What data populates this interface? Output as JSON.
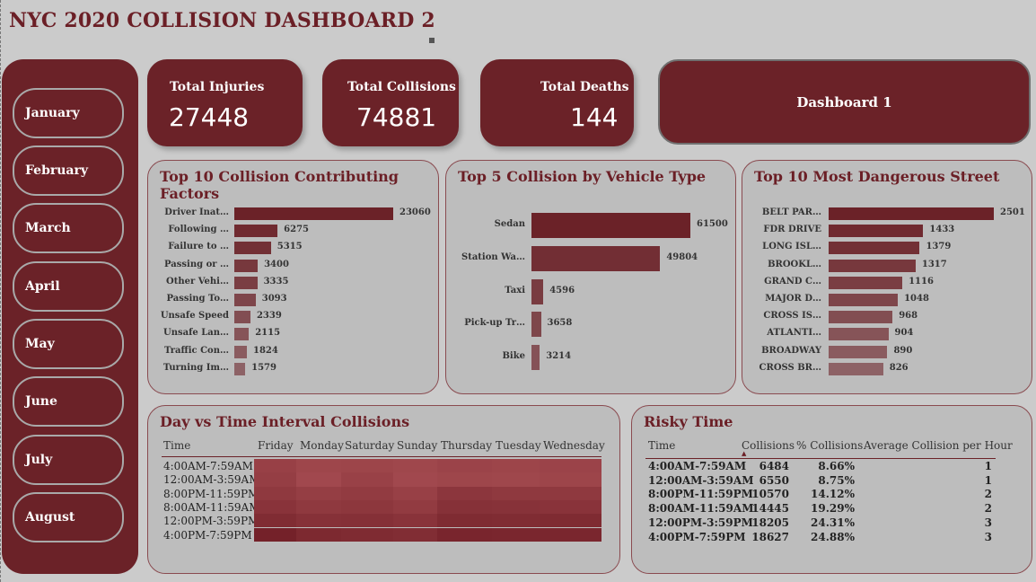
{
  "title": "NYC 2020 COLLISION DASHBOARD 2",
  "colors": {
    "accent": "#6b2228",
    "background": "#cbcbcb",
    "panel": "#bdbdbd"
  },
  "months": [
    "January",
    "February",
    "March",
    "April",
    "May",
    "June",
    "July",
    "August"
  ],
  "kpis": {
    "injuries": {
      "label": "Total Injuries",
      "value": "27448"
    },
    "collisions": {
      "label": "Total Collisions",
      "value": "74881"
    },
    "deaths": {
      "label": "Total Deaths",
      "value": "144"
    }
  },
  "dashboard_button": "Dashboard 1",
  "chart_data": [
    {
      "type": "bar",
      "orientation": "horizontal",
      "title": "Top 10 Collision Contributing Factors",
      "categories": [
        "Driver Inat…",
        "Following …",
        "Failure to …",
        "Passing or …",
        "Other Vehi…",
        "Passing To…",
        "Unsafe Speed",
        "Unsafe Lan…",
        "Traffic Con…",
        "Turning Im…"
      ],
      "values": [
        23060,
        6275,
        5315,
        3400,
        3335,
        3093,
        2339,
        2115,
        1824,
        1579
      ]
    },
    {
      "type": "bar",
      "orientation": "horizontal",
      "title": "Top 5 Collision by Vehicle Type",
      "categories": [
        "Sedan",
        "Station Wa…",
        "Taxi",
        "Pick-up Tr…",
        "Bike"
      ],
      "values": [
        61500,
        49804,
        4596,
        3658,
        3214
      ]
    },
    {
      "type": "bar",
      "orientation": "horizontal",
      "title": "Top 10 Most Dangerous Street",
      "categories": [
        "BELT PAR…",
        "FDR DRIVE",
        "LONG ISL…",
        "BROOKL…",
        "GRAND C…",
        "MAJOR D…",
        "CROSS IS…",
        "ATLANTI…",
        "BROADWAY",
        "CROSS BR…"
      ],
      "values": [
        2501,
        1433,
        1379,
        1317,
        1116,
        1048,
        968,
        904,
        890,
        826
      ]
    }
  ],
  "heatmap": {
    "title": "Day vs Time Interval Collisions",
    "corner": "Time",
    "days": [
      "Friday",
      "Monday",
      "Saturday",
      "Sunday",
      "Thursday",
      "Tuesday",
      "Wednesday"
    ],
    "rows": [
      "4:00AM-7:59AM",
      "12:00AM-3:59AM",
      "8:00PM-11:59PM",
      "8:00AM-11:59AM",
      "12:00PM-3:59PM",
      "4:00PM-7:59PM"
    ],
    "levels": [
      [
        0.3,
        0.2,
        0.22,
        0.18,
        0.25,
        0.22,
        0.25
      ],
      [
        0.35,
        0.15,
        0.28,
        0.15,
        0.2,
        0.18,
        0.22
      ],
      [
        0.45,
        0.35,
        0.4,
        0.3,
        0.5,
        0.45,
        0.45
      ],
      [
        0.55,
        0.45,
        0.48,
        0.4,
        0.6,
        0.58,
        0.55
      ],
      [
        0.7,
        0.6,
        0.62,
        0.55,
        0.72,
        0.7,
        0.72
      ],
      [
        0.9,
        0.75,
        0.72,
        0.68,
        0.82,
        0.8,
        0.8
      ]
    ]
  },
  "risky": {
    "title": "Risky Time",
    "headers": [
      "Time",
      "Collisions",
      "% Collisions",
      "Average Collision per Hour"
    ],
    "rows": [
      [
        "4:00AM-7:59AM",
        "6484",
        "8.66%",
        "1"
      ],
      [
        "12:00AM-3:59AM",
        "6550",
        "8.75%",
        "1"
      ],
      [
        "8:00PM-11:59PM",
        "10570",
        "14.12%",
        "2"
      ],
      [
        "8:00AM-11:59AM",
        "14445",
        "19.29%",
        "2"
      ],
      [
        "12:00PM-3:59PM",
        "18205",
        "24.31%",
        "3"
      ],
      [
        "4:00PM-7:59PM",
        "18627",
        "24.88%",
        "3"
      ]
    ]
  }
}
